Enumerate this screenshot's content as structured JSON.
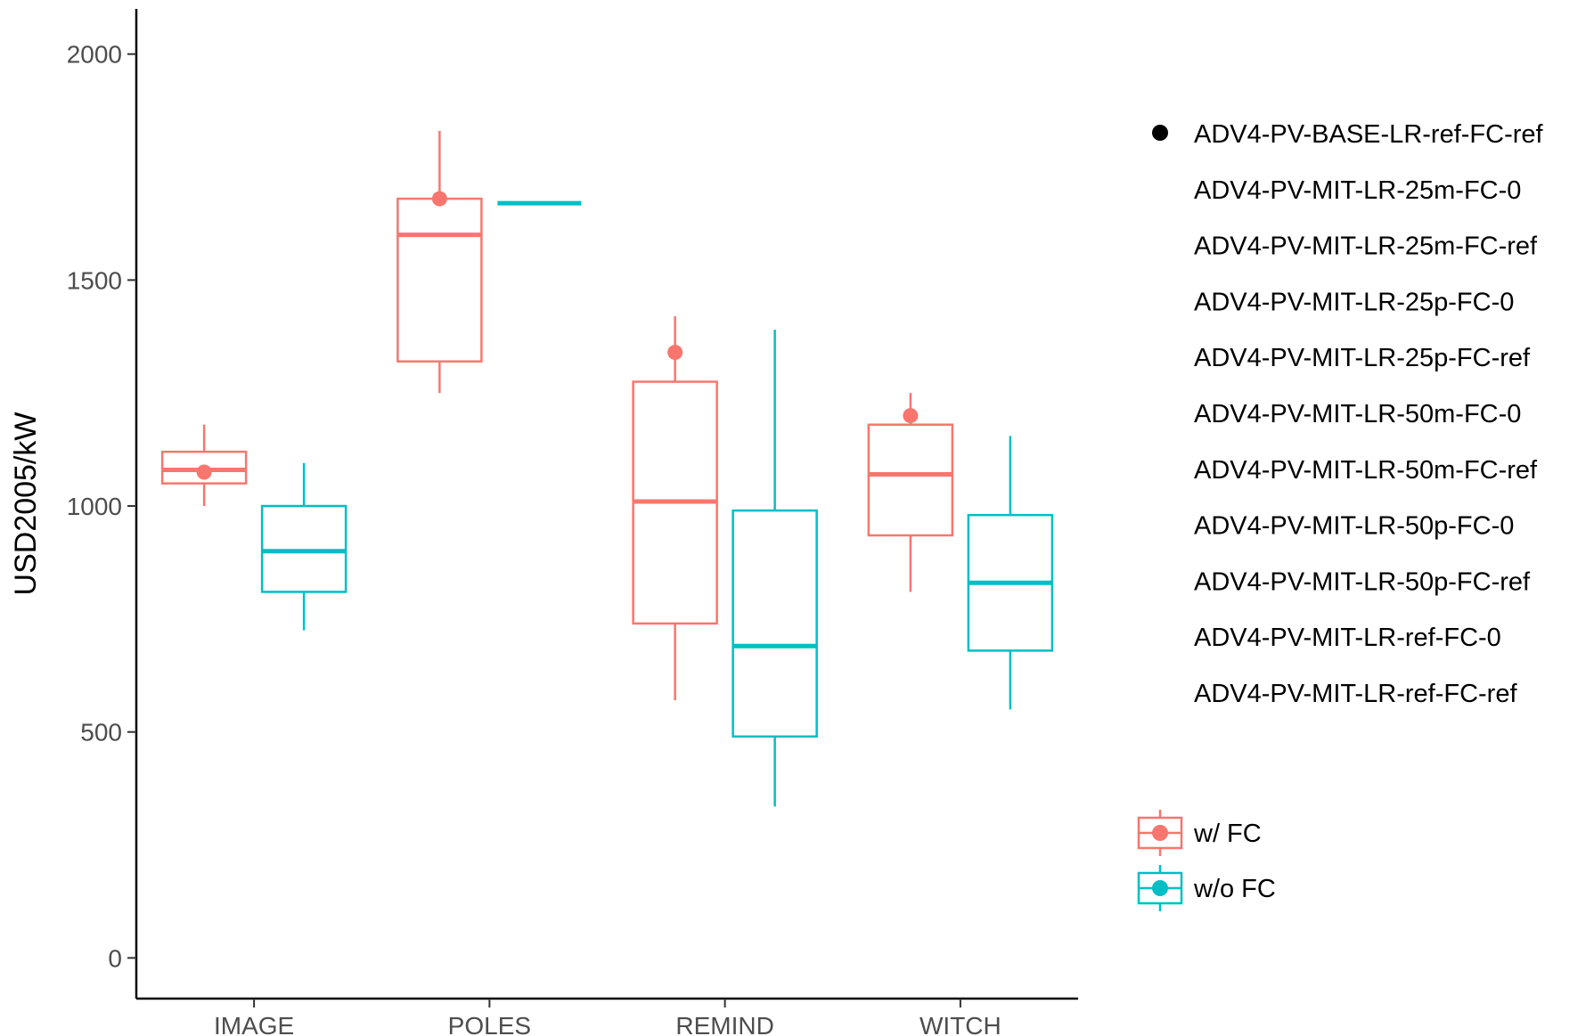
{
  "chart_data": {
    "type": "boxplot",
    "ylabel": "USD2005/kW",
    "xlabel": "",
    "ylim": [
      -90,
      2100
    ],
    "y_ticks": [
      0,
      500,
      1000,
      1500,
      2000
    ],
    "categories": [
      "IMAGE",
      "POLES",
      "REMIND",
      "WITCH"
    ],
    "grid": false,
    "colors": {
      "w/ FC": "#F8766D",
      "w/o FC": "#00BFC4",
      "point": "#000000"
    },
    "series": [
      {
        "name": "w/ FC",
        "color": "#F8766D",
        "boxes": [
          {
            "category": "IMAGE",
            "lower": 1000,
            "q1": 1050,
            "median": 1080,
            "q3": 1120,
            "upper": 1180
          },
          {
            "category": "POLES",
            "lower": 1250,
            "q1": 1320,
            "median": 1600,
            "q3": 1680,
            "upper": 1830
          },
          {
            "category": "REMIND",
            "lower": 570,
            "q1": 740,
            "median": 1010,
            "q3": 1275,
            "upper": 1420
          },
          {
            "category": "WITCH",
            "lower": 810,
            "q1": 935,
            "median": 1070,
            "q3": 1180,
            "upper": 1250
          }
        ],
        "points": [
          {
            "category": "IMAGE",
            "value": 1075
          },
          {
            "category": "POLES",
            "value": 1680
          },
          {
            "category": "REMIND",
            "value": 1340
          },
          {
            "category": "WITCH",
            "value": 1200
          }
        ]
      },
      {
        "name": "w/o FC",
        "color": "#00BFC4",
        "boxes": [
          {
            "category": "IMAGE",
            "lower": 725,
            "q1": 810,
            "median": 900,
            "q3": 1000,
            "upper": 1095
          },
          {
            "category": "POLES",
            "lower": 1670,
            "q1": 1670,
            "median": 1670,
            "q3": 1670,
            "upper": 1670
          },
          {
            "category": "REMIND",
            "lower": 335,
            "q1": 490,
            "median": 690,
            "q3": 990,
            "upper": 1390
          },
          {
            "category": "WITCH",
            "lower": 550,
            "q1": 680,
            "median": 830,
            "q3": 980,
            "upper": 1155
          }
        ],
        "points": []
      }
    ],
    "legend_scenarios": {
      "position": "right",
      "entries": [
        "ADV4-PV-BASE-LR-ref-FC-ref",
        "ADV4-PV-MIT-LR-25m-FC-0",
        "ADV4-PV-MIT-LR-25m-FC-ref",
        "ADV4-PV-MIT-LR-25p-FC-0",
        "ADV4-PV-MIT-LR-25p-FC-ref",
        "ADV4-PV-MIT-LR-50m-FC-0",
        "ADV4-PV-MIT-LR-50m-FC-ref",
        "ADV4-PV-MIT-LR-50p-FC-0",
        "ADV4-PV-MIT-LR-50p-FC-ref",
        "ADV4-PV-MIT-LR-ref-FC-0",
        "ADV4-PV-MIT-LR-ref-FC-ref"
      ]
    },
    "legend_fc": {
      "position": "right",
      "entries": [
        "w/ FC",
        "w/o FC"
      ]
    }
  }
}
